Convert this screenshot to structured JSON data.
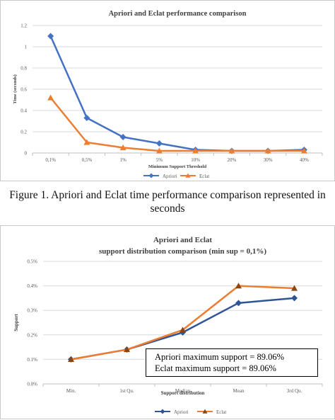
{
  "caption": "Figure 1. Apriori and Eclat time performance comparison represented in seconds",
  "info_box": {
    "line1": "Apriori maximum support = 89.06%",
    "line2": "Eclat maximum support = 89.06%"
  },
  "colors": {
    "apriori": "#4472C4",
    "eclat": "#ED7D31",
    "apriori2": "#2F5597",
    "eclat2": "#ED7D31",
    "eclat2_marker": "#8B4513"
  },
  "chart_data": [
    {
      "type": "line",
      "title": "Apriori  and Eclat performance comparison",
      "xlabel": "Minimum Support Threshold",
      "ylabel": "Time (seconds)",
      "categories": [
        "0,1%",
        "0,5%",
        "1%",
        "5%",
        "10%",
        "20%",
        "30%",
        "40%"
      ],
      "ylim": [
        0,
        1.2
      ],
      "yticks": [
        "0",
        "0.2",
        "0.4",
        "0.6",
        "0.8",
        "1",
        "1.2"
      ],
      "grid": true,
      "legend": "bottom",
      "series": [
        {
          "name": "Apriori",
          "values": [
            1.1,
            0.33,
            0.15,
            0.09,
            0.03,
            0.02,
            0.02,
            0.03
          ]
        },
        {
          "name": "Eclat",
          "values": [
            0.52,
            0.1,
            0.05,
            0.02,
            0.02,
            0.02,
            0.02,
            0.02
          ]
        }
      ]
    },
    {
      "type": "line",
      "title": "Apriori  and Eclat",
      "subtitle": "support distribution comparison (min sup = 0,1%)",
      "xlabel": "Support distribution",
      "ylabel": "Support",
      "categories": [
        "Min.",
        "1st Qu.",
        "Median",
        "Mean",
        "3rd Qu."
      ],
      "ylim": [
        0,
        0.5
      ],
      "yticks": [
        "0.0%",
        "0.1%",
        "0.2%",
        "0.3%",
        "0.4%",
        "0.5%"
      ],
      "grid": true,
      "legend": "bottom",
      "series": [
        {
          "name": "Apriori",
          "values": [
            0.1,
            0.14,
            0.21,
            0.33,
            0.35
          ]
        },
        {
          "name": "Eclat",
          "values": [
            0.1,
            0.14,
            0.22,
            0.4,
            0.39
          ]
        }
      ]
    }
  ]
}
